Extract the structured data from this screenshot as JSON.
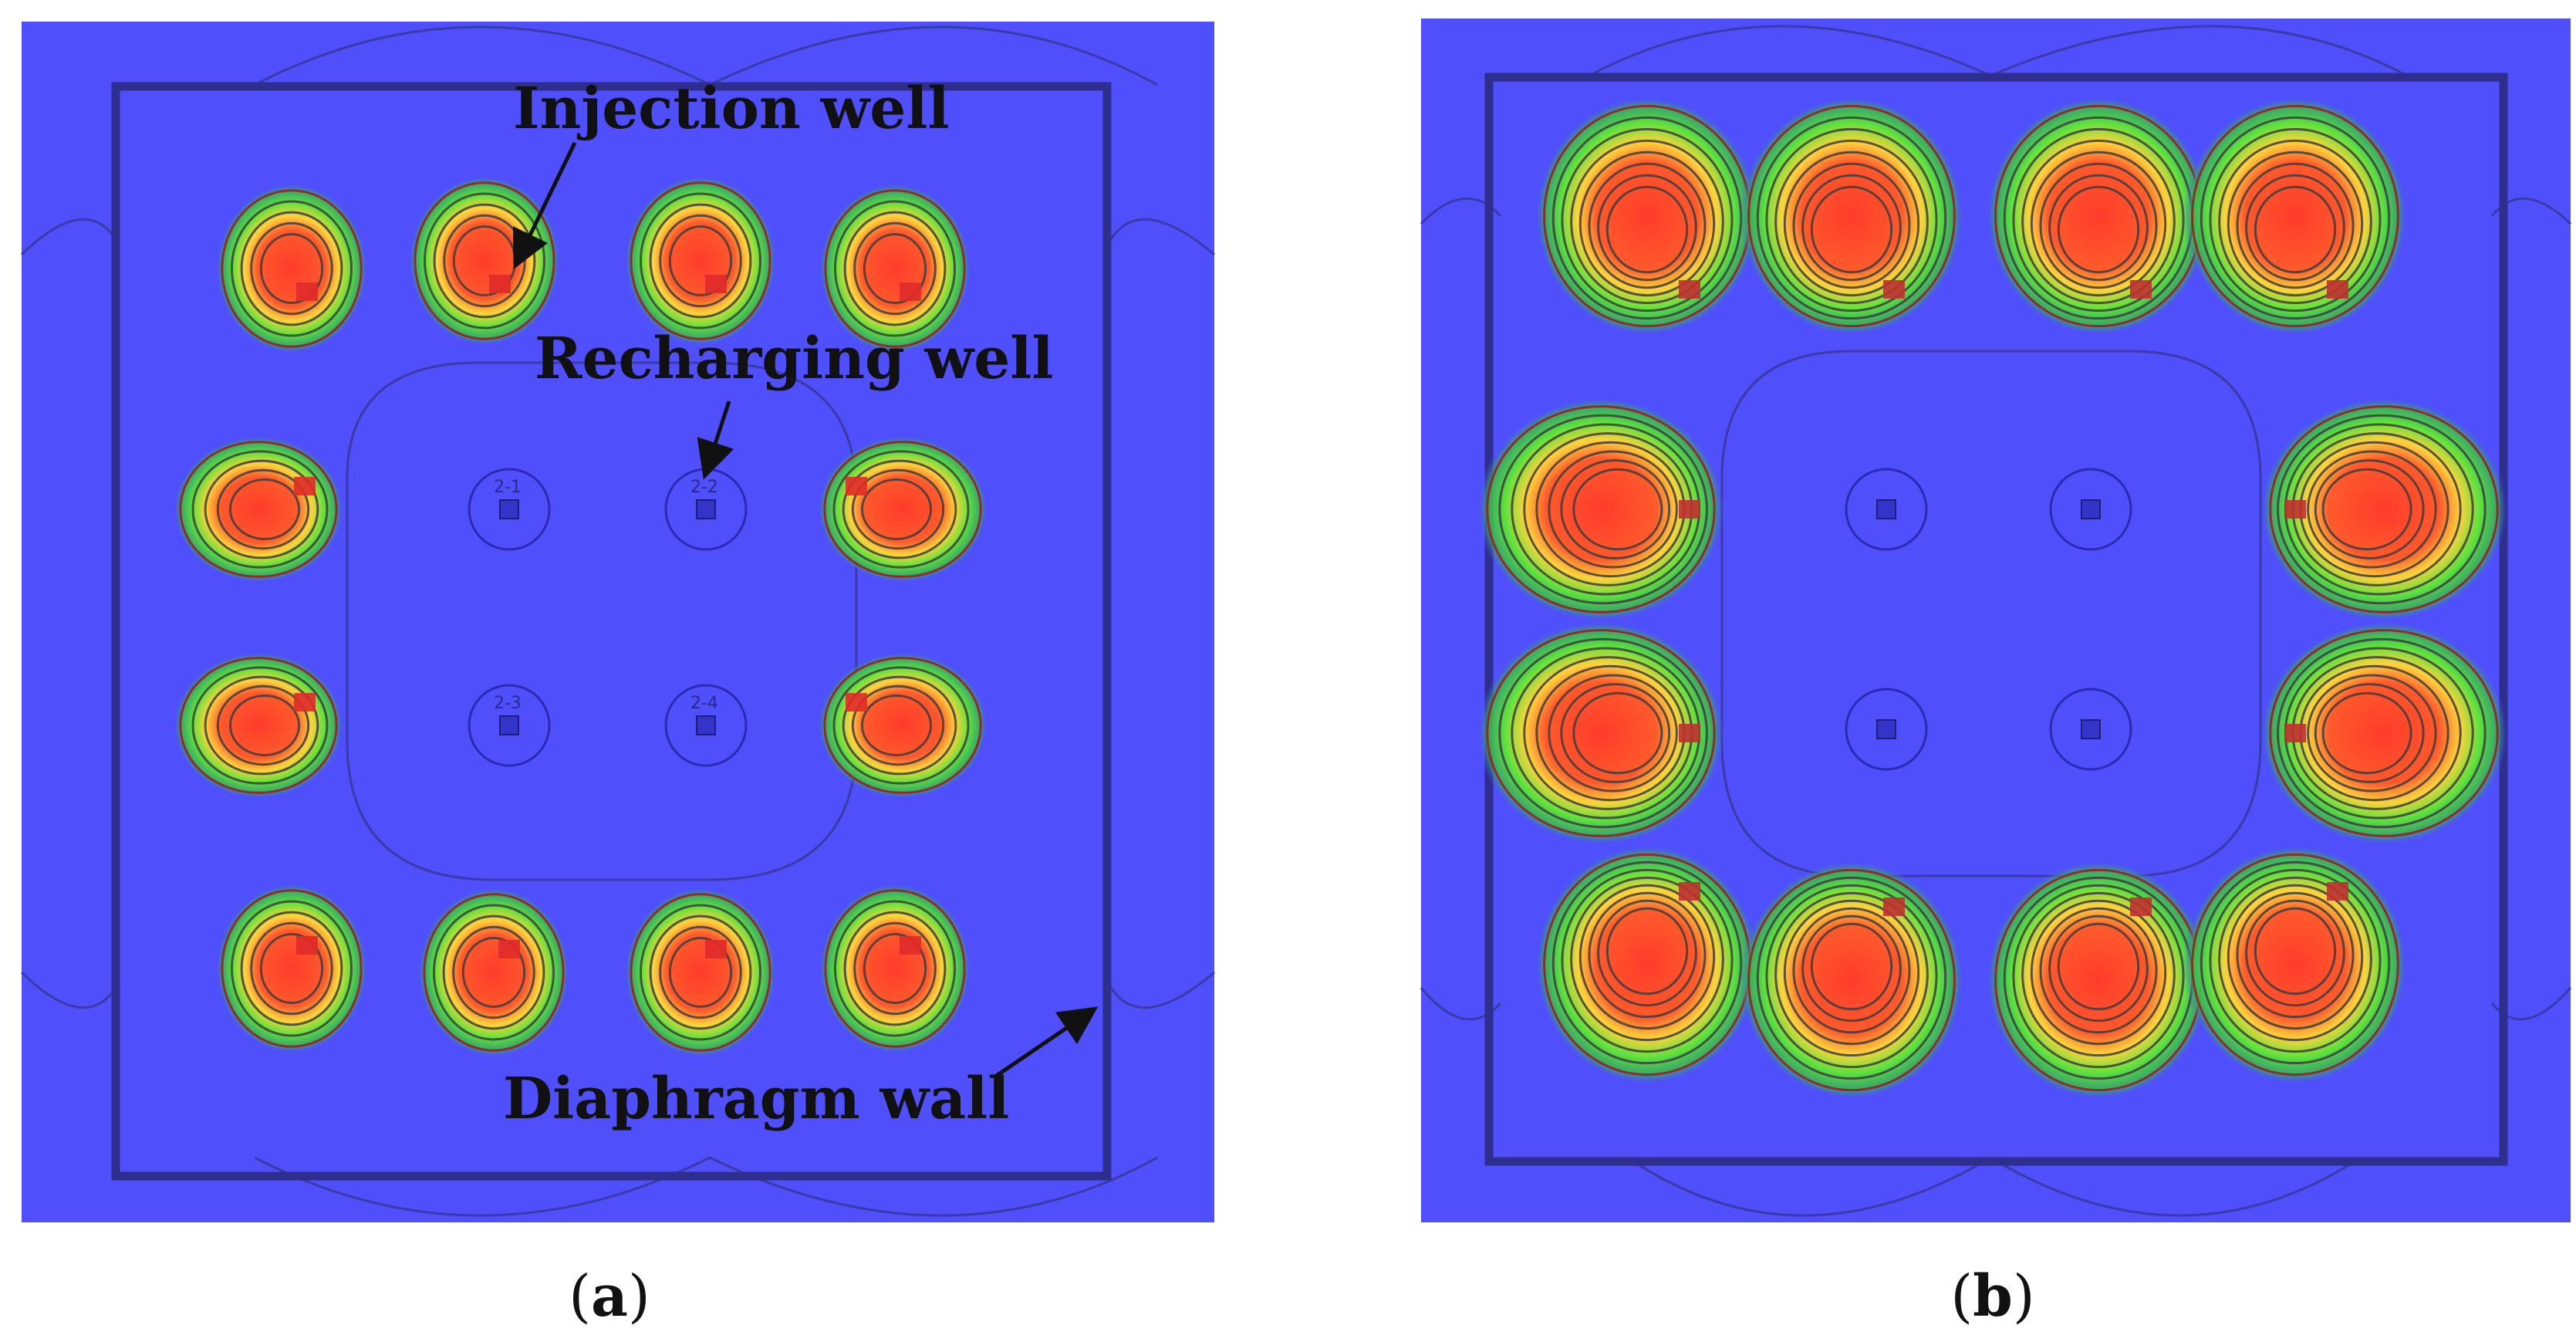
{
  "colors": {
    "background_field": "#4f4ffc",
    "wall": "#2e2e8c",
    "contour_inner": "#3d3d3d",
    "contour_outer": "#9a1b1b",
    "zone_hot": "#ff3b2b",
    "zone_warm": "#ffd23c",
    "zone_mid": "#5de23c"
  },
  "annotations": {
    "injection_well": "Injection well",
    "recharging_well": "Recharging well",
    "diaphragm_wall": "Diaphragm wall"
  },
  "panels": [
    {
      "paren_open": "(",
      "label": "a",
      "paren_close": ")"
    },
    {
      "paren_open": "(",
      "label": "b",
      "paren_close": ")"
    }
  ],
  "recharging_well_labels": [
    "2-1",
    "2-2",
    "2-3",
    "2-4"
  ]
}
